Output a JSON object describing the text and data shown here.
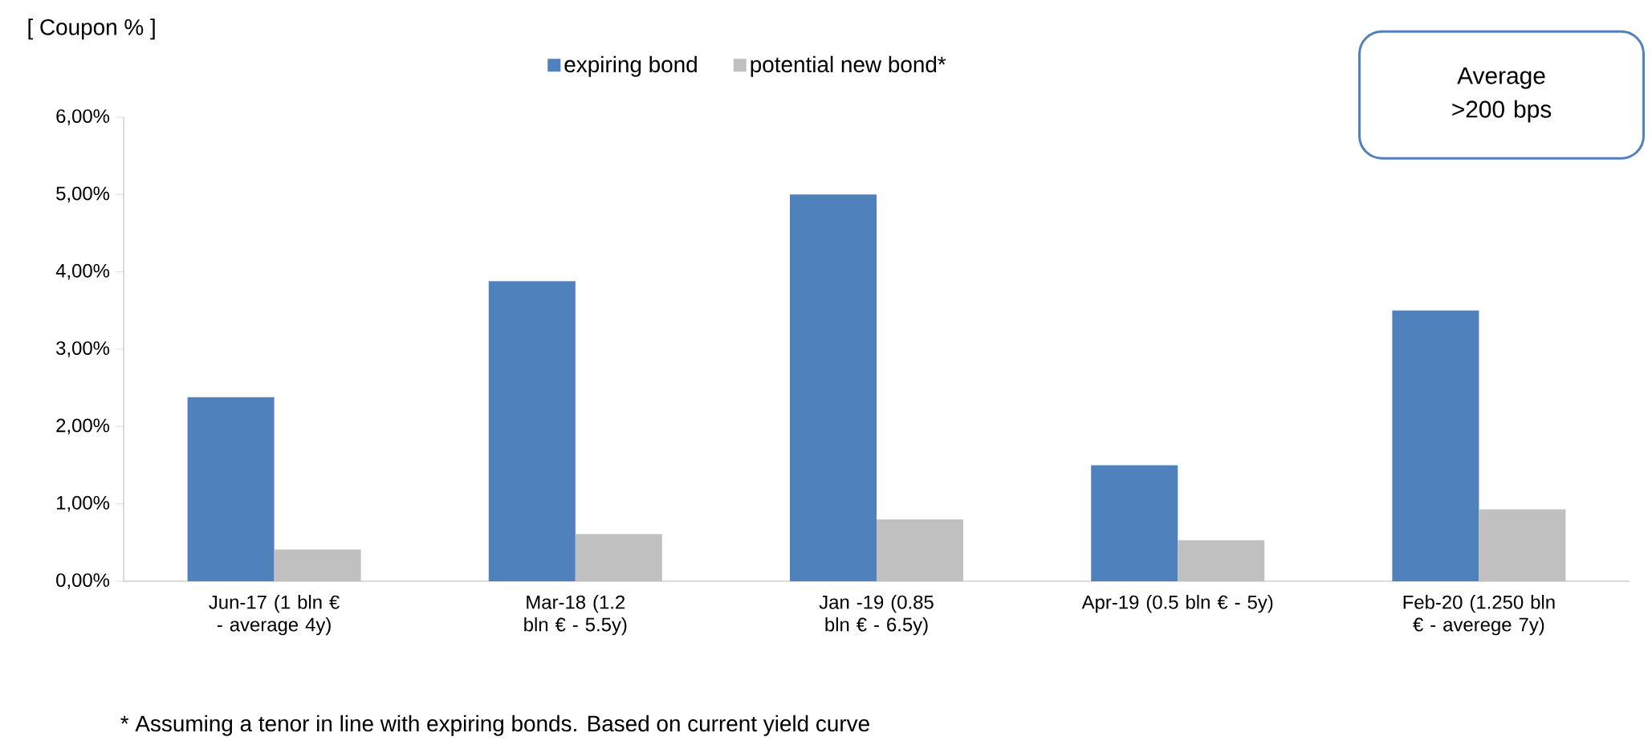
{
  "chart_data": {
    "type": "bar",
    "ylabel": "[ Coupon % ]",
    "categories": [
      "Jun-17 (1 bln € - average 4y)",
      "Mar-18 (1.2 bln € - 5.5y)",
      "Jan -19 (0.85 bln € - 6.5y)",
      "Apr-19 (0.5 bln € - 5y)",
      "Feb-20 (1.250 bln € - averege 7y)"
    ],
    "series": [
      {
        "name": "expiring bond",
        "color": "#4f81bd",
        "values": [
          2.38,
          3.88,
          5.0,
          1.5,
          3.5
        ]
      },
      {
        "name": "potential new bond*",
        "color": "#c0c0c0",
        "values": [
          0.41,
          0.61,
          0.8,
          0.53,
          0.93
        ]
      }
    ],
    "ylim": [
      0,
      6
    ],
    "yticks": [
      {
        "value": 0,
        "label": "0,00%"
      },
      {
        "value": 1,
        "label": "1,00%"
      },
      {
        "value": 2,
        "label": "2,00%"
      },
      {
        "value": 3,
        "label": "3,00%"
      },
      {
        "value": 4,
        "label": "4,00%"
      },
      {
        "value": 5,
        "label": "5,00%"
      },
      {
        "value": 6,
        "label": "6,00%"
      }
    ],
    "legend": "top",
    "annotations": [
      "Average  >200 bps",
      "* Assuming a tenor in line with expiring bonds. Based on current yield curve"
    ]
  }
}
